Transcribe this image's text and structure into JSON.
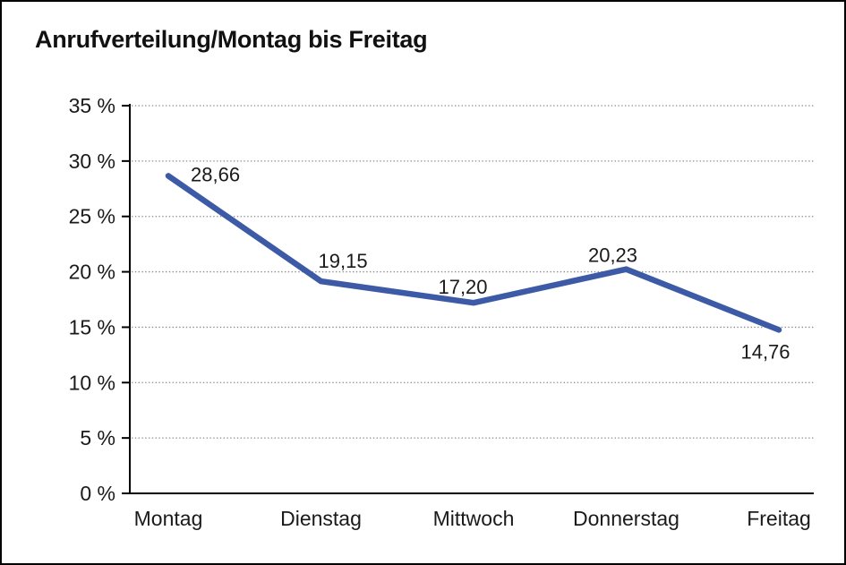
{
  "chart_data": {
    "type": "line",
    "title": "Anrufverteilung/Montag bis Freitag",
    "categories": [
      "Montag",
      "Dienstag",
      "Mittwoch",
      "Donnerstag",
      "Freitag"
    ],
    "values": [
      28.66,
      19.15,
      17.2,
      20.23,
      14.76
    ],
    "point_labels": [
      "28,66",
      "19,15",
      "17,20",
      "20,23",
      "14,76"
    ],
    "xlabel": "",
    "ylabel": "",
    "ylim": [
      0,
      35
    ],
    "y_tick_step": 5,
    "y_tick_labels": [
      "0 %",
      "5 %",
      "10 %",
      "15 %",
      "20 %",
      "25 %",
      "30 %",
      "35 %"
    ],
    "grid": "horizontal-dotted",
    "legend": "none",
    "colors": {
      "line": "#3C5AA5",
      "grid": "#8c8c8c",
      "axis": "#000000",
      "text": "#1a1a1a"
    }
  }
}
